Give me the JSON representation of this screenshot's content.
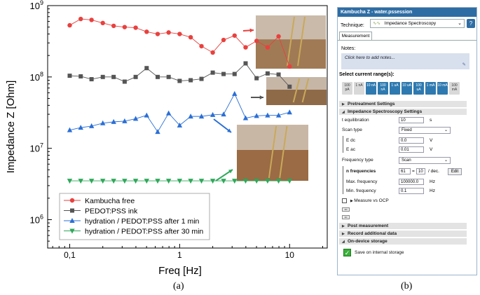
{
  "chart_data": {
    "type": "scatter",
    "xlabel": "Freq [Hz]",
    "ylabel": "Impedance Z [Ohm]",
    "xscale": "log",
    "yscale": "log",
    "xlim": [
      0.063,
      22
    ],
    "ylim": [
      400000.0,
      1000000000.0
    ],
    "x_ticks": [
      0.1,
      1,
      10
    ],
    "x_tick_labels": [
      "0,1",
      "1",
      "10"
    ],
    "y_ticks": [
      1000000.0,
      10000000.0,
      100000000.0,
      1000000000.0
    ],
    "legend_position": "lower-left",
    "series": [
      {
        "name": "Kambucha free",
        "color": "#e8413e",
        "marker": "circle",
        "x": [
          0.1,
          0.126,
          0.158,
          0.2,
          0.251,
          0.316,
          0.398,
          0.501,
          0.631,
          0.794,
          1.0,
          1.26,
          1.58,
          2.0,
          2.51,
          3.16,
          3.98,
          5.01,
          6.31,
          7.94,
          10.0
        ],
        "y": [
          530000000.0,
          650000000.0,
          630000000.0,
          570000000.0,
          520000000.0,
          500000000.0,
          490000000.0,
          430000000.0,
          400000000.0,
          420000000.0,
          400000000.0,
          360000000.0,
          270000000.0,
          220000000.0,
          330000000.0,
          380000000.0,
          260000000.0,
          320000000.0,
          260000000.0,
          370000000.0,
          140000000.0
        ]
      },
      {
        "name": "PEDOT:PSS ink",
        "color": "#555555",
        "marker": "square",
        "x": [
          0.1,
          0.126,
          0.158,
          0.2,
          0.251,
          0.316,
          0.398,
          0.501,
          0.631,
          0.794,
          1.0,
          1.26,
          1.58,
          2.0,
          2.51,
          3.16,
          3.98,
          5.01,
          6.31,
          7.94,
          10.0
        ],
        "y": [
          104000000.0,
          102000000.0,
          93000000.0,
          100000000.0,
          100000000.0,
          86000000.0,
          100000000.0,
          133000000.0,
          100000000.0,
          100000000.0,
          88000000.0,
          90000000.0,
          94000000.0,
          115000000.0,
          110000000.0,
          110000000.0,
          155000000.0,
          96000000.0,
          112000000.0,
          108000000.0,
          73000000.0
        ]
      },
      {
        "name": "hydration / PEDOT:PSS after 1 min",
        "color": "#2a6fd6",
        "marker": "triangle-up",
        "x": [
          0.1,
          0.126,
          0.158,
          0.2,
          0.251,
          0.316,
          0.398,
          0.501,
          0.631,
          0.794,
          1.0,
          1.26,
          1.58,
          2.0,
          2.51,
          3.16,
          3.98,
          5.01,
          6.31,
          7.94,
          10.0
        ],
        "y": [
          18000000.0,
          19500000.0,
          20500000.0,
          22500000.0,
          23500000.0,
          24000000.0,
          26000000.0,
          29000000.0,
          17000000.0,
          31000000.0,
          21000000.0,
          28000000.0,
          28000000.0,
          29500000.0,
          30000000.0,
          58000000.0,
          26500000.0,
          28500000.0,
          29000000.0,
          29000000.0,
          32000000.0
        ]
      },
      {
        "name": "hydration / PEDOT:PSS after 30 min",
        "color": "#2fa85a",
        "marker": "triangle-down",
        "x": [
          0.1,
          0.126,
          0.158,
          0.2,
          0.251,
          0.316,
          0.398,
          0.501,
          0.631,
          0.794,
          1.0,
          1.26,
          1.58,
          2.0,
          2.51,
          3.16,
          3.98,
          5.01,
          6.31,
          7.94,
          10.0
        ],
        "y": [
          3500000.0,
          3500000.0,
          3500000.0,
          3500000.0,
          3500000.0,
          3500000.0,
          3500000.0,
          3500000.0,
          3500000.0,
          3500000.0,
          3500000.0,
          3500000.0,
          3500000.0,
          3500000.0,
          3500000.0,
          3500000.0,
          3500000.0,
          3500000.0,
          3500000.0,
          3500000.0,
          3500000.0
        ]
      }
    ]
  },
  "captions": {
    "left": "(a)",
    "right": "(b)"
  },
  "window": {
    "title": "Kambucha Z - water.pssession",
    "technique_label": "Technique:",
    "technique_value": "Impedance Spectroscopy",
    "help": "?",
    "tab": "Measurement",
    "notes_label": "Notes:",
    "notes_placeholder": "Click here to add notes...",
    "ranges_label": "Select current range(s):",
    "ranges": [
      {
        "label": "100 pA",
        "on": false
      },
      {
        "label": "1 nA",
        "on": false
      },
      {
        "label": "10 nA",
        "on": true
      },
      {
        "label": "100 nA",
        "on": true
      },
      {
        "label": "1 uA",
        "on": true
      },
      {
        "label": "10 uA",
        "on": true
      },
      {
        "label": "100 uA",
        "on": true
      },
      {
        "label": "1 mA",
        "on": true
      },
      {
        "label": "10 mA",
        "on": true
      },
      {
        "label": "100 mA",
        "on": false
      }
    ],
    "sections": {
      "pretreatment": "Pretreatment Settings",
      "impedance": "Impedance Spectroscopy Settings",
      "post": "Post measurement",
      "record": "Record additional data",
      "storage": "On-device storage"
    },
    "fields": {
      "t_equil_label": "t equilibration",
      "t_equil_value": "10",
      "t_equil_unit": "s",
      "scan_type_label": "Scan type",
      "scan_type_value": "Fixed",
      "edc_label": "E dc",
      "edc_value": "0.0",
      "edc_unit": "V",
      "eac_label": "E ac",
      "eac_value": "0.01",
      "eac_unit": "V",
      "freq_type_label": "Frequency type",
      "freq_type_value": "Scan",
      "nfreq_label": "n frequencies",
      "nfreq_value": "61",
      "nfreq_eq": "=",
      "nfreq_per": "10",
      "nfreq_unit": "/ dec.",
      "edit": "Edit",
      "maxf_label": "Max. frequency",
      "maxf_value": "100000.0",
      "maxf_unit": "Hz",
      "minf_label": "Min. frequency",
      "minf_value": "0.1",
      "minf_unit": "Hz",
      "vs_ocp": "Measure vs OCP",
      "save_internal": "Save on internal storage"
    }
  }
}
